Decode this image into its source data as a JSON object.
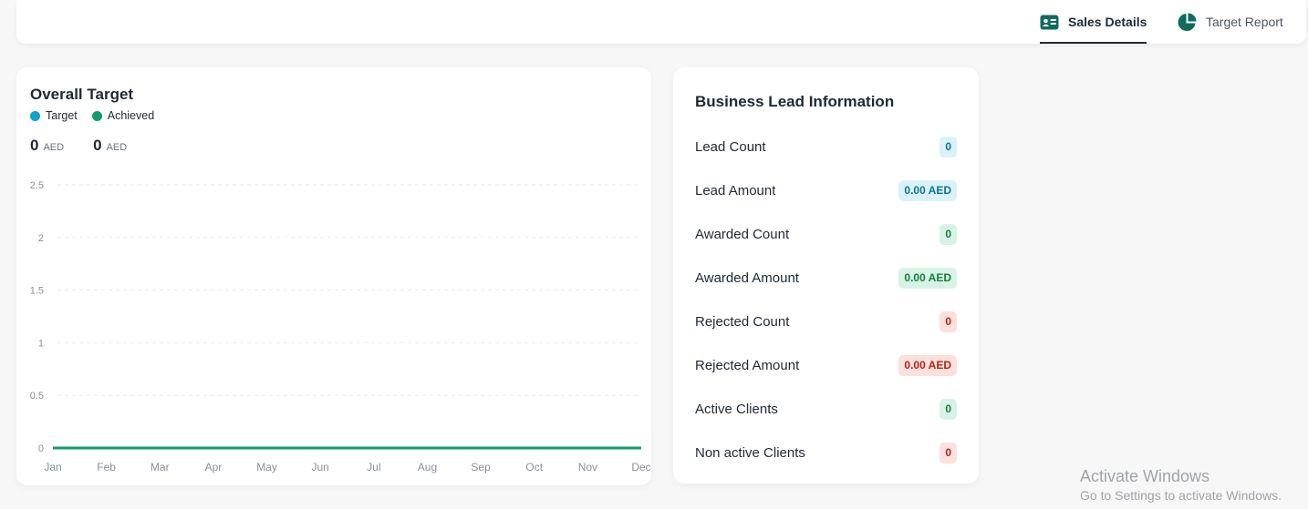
{
  "tabs": [
    {
      "label": "Sales Details",
      "icon": "id-card-icon",
      "active": true
    },
    {
      "label": "Target Report",
      "icon": "pie-chart-icon",
      "active": false
    }
  ],
  "overall_target": {
    "title": "Overall Target",
    "legend": [
      {
        "label": "Target",
        "color": "#0ea5c9"
      },
      {
        "label": "Achieved",
        "color": "#0f9d6e"
      }
    ],
    "target_total": "0",
    "achieved_total": "0",
    "currency": "AED"
  },
  "chart_data": {
    "type": "line",
    "title": "Overall Target",
    "x": [
      "Jan",
      "Feb",
      "Mar",
      "Apr",
      "May",
      "Jun",
      "Jul",
      "Aug",
      "Sep",
      "Oct",
      "Nov",
      "Dec"
    ],
    "series": [
      {
        "name": "Target",
        "values": [
          0,
          0,
          0,
          0,
          0,
          0,
          0,
          0,
          0,
          0,
          0,
          0
        ],
        "color": "#0ea5c9"
      },
      {
        "name": "Achieved",
        "values": [
          0,
          0,
          0,
          0,
          0,
          0,
          0,
          0,
          0,
          0,
          0,
          0
        ],
        "color": "#0f9d6e"
      }
    ],
    "yticks": [
      "0",
      "0.5",
      "1",
      "1.5",
      "2",
      "2.5"
    ],
    "ylim": [
      0,
      2.5
    ],
    "grid": true,
    "legend_placement": "top-left"
  },
  "lead_info": {
    "title": "Business Lead Information",
    "rows": [
      {
        "label": "Lead Count",
        "value": "0",
        "tone": "info"
      },
      {
        "label": "Lead Amount",
        "value": "0.00 AED",
        "tone": "info"
      },
      {
        "label": "Awarded Count",
        "value": "0",
        "tone": "success"
      },
      {
        "label": "Awarded Amount",
        "value": "0.00 AED",
        "tone": "success"
      },
      {
        "label": "Rejected Count",
        "value": "0",
        "tone": "danger"
      },
      {
        "label": "Rejected Amount",
        "value": "0.00 AED",
        "tone": "danger"
      },
      {
        "label": "Active Clients",
        "value": "0",
        "tone": "success"
      },
      {
        "label": "Non active Clients",
        "value": "0",
        "tone": "danger"
      }
    ]
  },
  "watermark": {
    "line1": "Activate Windows",
    "line2": "Go to Settings to activate Windows."
  }
}
